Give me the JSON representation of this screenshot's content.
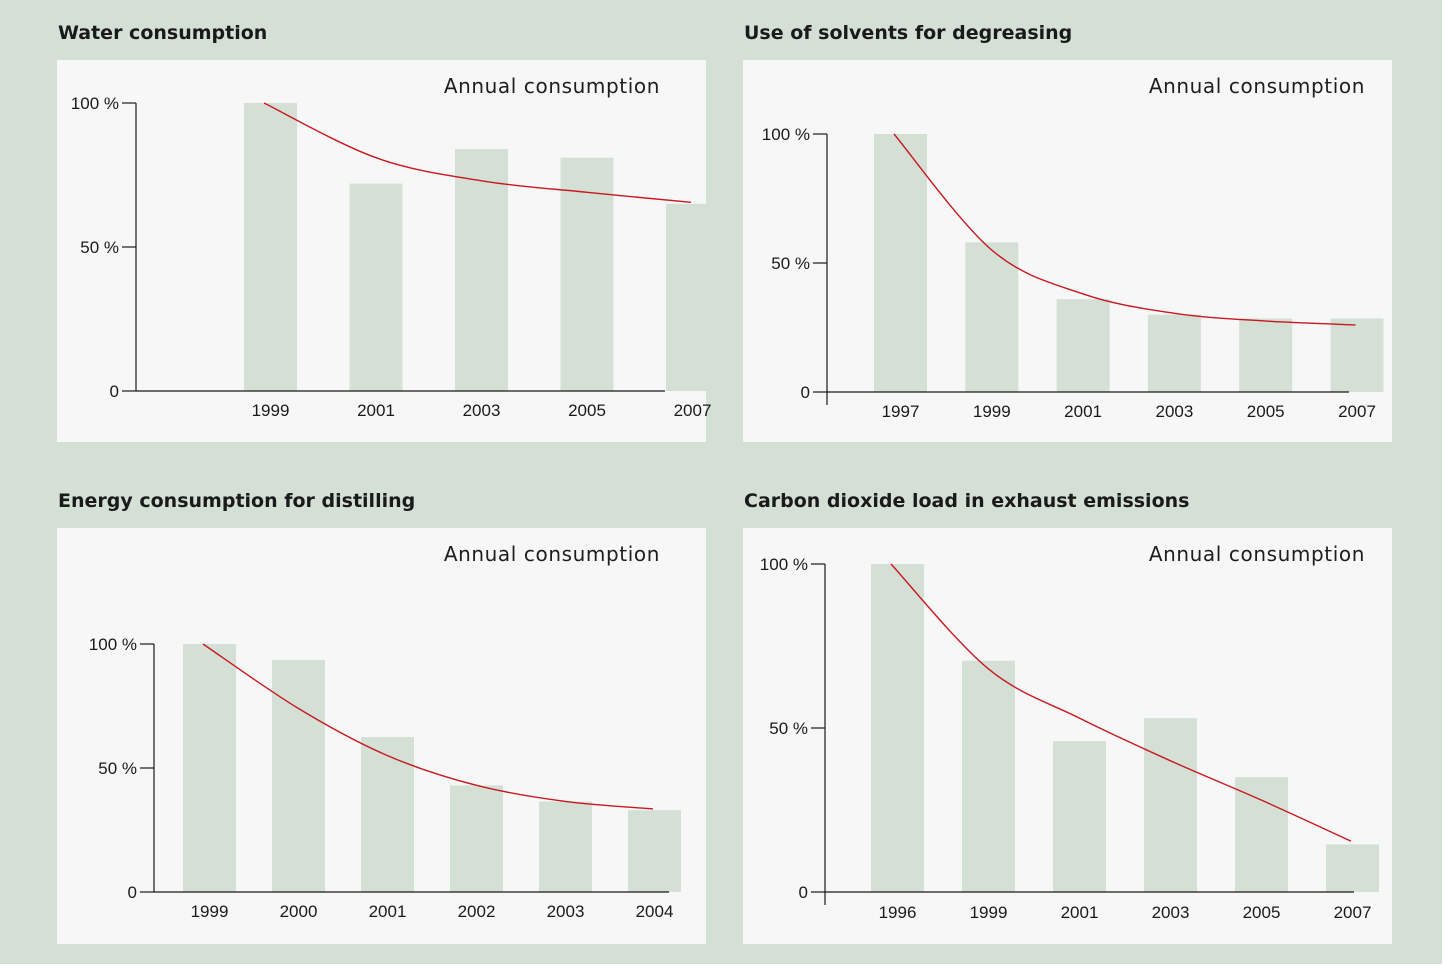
{
  "colors": {
    "background": "#d4e0d6",
    "panel": "#f7f7f7",
    "bar": "#d4e0d6",
    "trend_line": "#c8181f",
    "axis": "#1a1a1a"
  },
  "chart_data": [
    {
      "type": "bar",
      "title": "Water consumption",
      "annotation": "Annual consumption",
      "categories": [
        "1999",
        "2001",
        "2003",
        "2005",
        "2007"
      ],
      "values": [
        100,
        72,
        84,
        81,
        65
      ],
      "trend_line": [
        100,
        81,
        73,
        69,
        65.5
      ],
      "ylim": [
        0,
        100
      ],
      "yticks": [
        0,
        50,
        100
      ],
      "ytick_labels": [
        "0",
        "50 %",
        "100 %"
      ],
      "grid": false,
      "legend": "none"
    },
    {
      "type": "bar",
      "title": "Use of solvents for degreasing",
      "annotation": "Annual consumption",
      "categories": [
        "1997",
        "1999",
        "2001",
        "2003",
        "2005",
        "2007"
      ],
      "values": [
        100,
        58,
        36,
        30,
        28.5,
        28.5
      ],
      "trend_line": [
        100,
        55,
        38,
        30.5,
        27.5,
        26
      ],
      "ylim": [
        0,
        100
      ],
      "yticks": [
        0,
        50,
        100
      ],
      "ytick_labels": [
        "0",
        "50 %",
        "100 %"
      ],
      "grid": false,
      "legend": "none"
    },
    {
      "type": "bar",
      "title": "Energy consumption for distilling",
      "annotation": "Annual consumption",
      "categories": [
        "1999",
        "2000",
        "2001",
        "2002",
        "2003",
        "2004"
      ],
      "values": [
        100,
        93.5,
        62.5,
        43,
        36.5,
        33
      ],
      "trend_line": [
        100,
        74,
        55,
        43,
        36.5,
        33.5
      ],
      "ylim": [
        0,
        100
      ],
      "yticks": [
        0,
        50,
        100
      ],
      "ytick_labels": [
        "0",
        "50 %",
        "100 %"
      ],
      "grid": false,
      "legend": "none"
    },
    {
      "type": "bar",
      "title": "Carbon dioxide load in exhaust emissions",
      "annotation": "Annual consumption",
      "categories": [
        "1996",
        "1999",
        "2001",
        "2003",
        "2005",
        "2007"
      ],
      "values": [
        100,
        70.5,
        46,
        53,
        35,
        14.5
      ],
      "trend_line": [
        100,
        68,
        53,
        40,
        28,
        15.5
      ],
      "ylim": [
        0,
        100
      ],
      "yticks": [
        0,
        50,
        100
      ],
      "ytick_labels": [
        "0",
        "50 %",
        "100 %"
      ],
      "grid": false,
      "legend": "none"
    }
  ]
}
